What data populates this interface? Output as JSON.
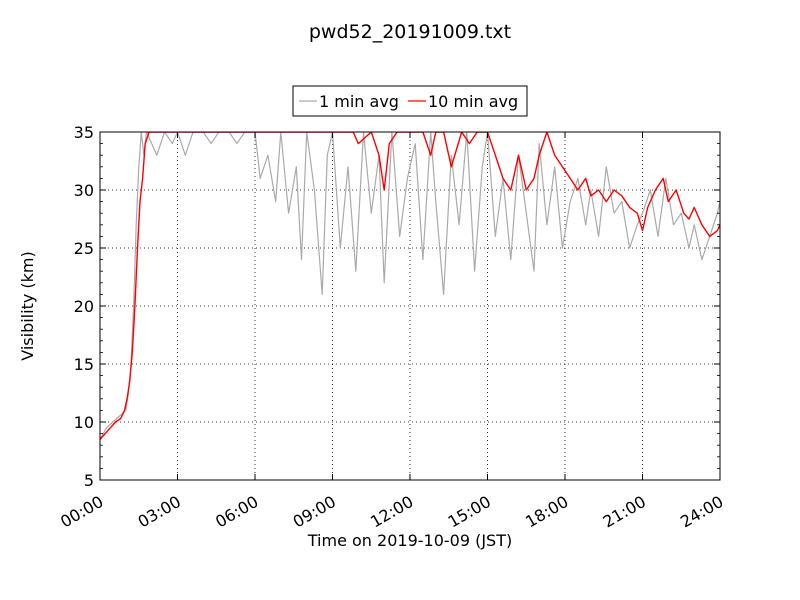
{
  "chart_data": {
    "type": "line",
    "title": "pwd52_20191009.txt",
    "xlabel": "Time on 2019-10-09 (JST)",
    "ylabel": "Visibility (km)",
    "xlim": [
      "00:00",
      "24:00"
    ],
    "ylim": [
      5,
      35
    ],
    "x_ticks": [
      "00:00",
      "03:00",
      "06:00",
      "09:00",
      "12:00",
      "15:00",
      "18:00",
      "21:00",
      "24:00"
    ],
    "y_ticks": [
      5,
      10,
      15,
      20,
      25,
      30,
      35
    ],
    "grid": true,
    "legend_position": "top-center",
    "series": [
      {
        "name": "1 min avg",
        "color": "#aaaaaa",
        "x_hours": [
          0.0,
          0.25,
          0.5,
          0.75,
          1.0,
          1.1,
          1.2,
          1.3,
          1.4,
          1.5,
          1.6,
          1.7,
          1.8,
          2.0,
          2.2,
          2.5,
          2.8,
          3.0,
          3.3,
          3.6,
          4.0,
          4.3,
          4.6,
          5.0,
          5.3,
          5.6,
          6.0,
          6.2,
          6.5,
          6.8,
          7.0,
          7.3,
          7.6,
          7.8,
          8.0,
          8.3,
          8.6,
          8.8,
          9.0,
          9.3,
          9.6,
          9.9,
          10.2,
          10.5,
          10.8,
          11.0,
          11.3,
          11.6,
          11.9,
          12.2,
          12.5,
          12.8,
          13.0,
          13.3,
          13.6,
          13.9,
          14.2,
          14.5,
          14.8,
          15.0,
          15.3,
          15.6,
          15.9,
          16.2,
          16.5,
          16.8,
          17.0,
          17.3,
          17.6,
          17.9,
          18.2,
          18.5,
          18.8,
          19.0,
          19.3,
          19.6,
          19.9,
          20.2,
          20.5,
          20.8,
          21.0,
          21.3,
          21.6,
          21.9,
          22.2,
          22.5,
          22.8,
          23.0,
          23.3,
          23.6,
          23.9,
          24.0
        ],
        "values": [
          8.5,
          9.5,
          10.0,
          10.5,
          11.0,
          12.5,
          15.0,
          20.0,
          27.0,
          32.0,
          35.0,
          33.0,
          35.0,
          34.0,
          33.0,
          35.0,
          34.0,
          35.0,
          33.0,
          35.0,
          35.0,
          34.0,
          35.0,
          35.0,
          34.0,
          35.0,
          35.0,
          31.0,
          33.0,
          29.0,
          35.0,
          28.0,
          32.0,
          24.0,
          35.0,
          30.0,
          21.0,
          33.0,
          35.0,
          25.0,
          32.0,
          23.0,
          35.0,
          28.0,
          33.0,
          22.0,
          35.0,
          26.0,
          31.0,
          34.0,
          24.0,
          35.0,
          29.0,
          21.0,
          33.0,
          27.0,
          35.0,
          23.0,
          32.0,
          35.0,
          26.0,
          31.0,
          24.0,
          33.0,
          28.0,
          23.0,
          34.0,
          27.0,
          32.0,
          25.0,
          29.0,
          31.0,
          27.0,
          30.0,
          26.0,
          32.0,
          28.0,
          29.0,
          25.0,
          27.0,
          28.0,
          30.0,
          26.0,
          31.0,
          27.0,
          28.0,
          25.0,
          27.0,
          24.0,
          26.0,
          28.0,
          29.0
        ]
      },
      {
        "name": "10 min avg",
        "color": "#ff0000",
        "x_hours": [
          0.0,
          0.2,
          0.4,
          0.6,
          0.8,
          0.95,
          1.05,
          1.15,
          1.25,
          1.35,
          1.45,
          1.55,
          1.65,
          1.75,
          1.9,
          2.2,
          2.6,
          3.0,
          3.5,
          4.0,
          5.0,
          6.0,
          7.0,
          8.0,
          8.5,
          8.8,
          9.0,
          9.5,
          9.8,
          10.0,
          10.5,
          10.8,
          11.0,
          11.2,
          11.5,
          12.0,
          12.5,
          12.8,
          13.0,
          13.3,
          13.6,
          14.0,
          14.3,
          14.6,
          15.0,
          15.3,
          15.6,
          15.9,
          16.2,
          16.5,
          16.8,
          17.0,
          17.3,
          17.6,
          17.9,
          18.2,
          18.5,
          18.8,
          19.0,
          19.3,
          19.6,
          19.9,
          20.2,
          20.5,
          20.8,
          21.0,
          21.2,
          21.5,
          21.8,
          22.0,
          22.3,
          22.6,
          22.8,
          23.0,
          23.3,
          23.6,
          23.9,
          24.0
        ],
        "values": [
          8.5,
          9.0,
          9.5,
          10.0,
          10.3,
          11.0,
          12.0,
          13.5,
          16.0,
          20.0,
          25.0,
          29.0,
          31.0,
          34.0,
          35.0,
          35.0,
          35.0,
          35.0,
          35.0,
          35.0,
          35.0,
          35.0,
          35.0,
          35.0,
          35.0,
          35.0,
          35.0,
          35.0,
          35.0,
          34.0,
          35.0,
          33.0,
          30.0,
          34.0,
          35.0,
          35.0,
          35.0,
          33.0,
          35.0,
          35.0,
          32.0,
          35.0,
          34.0,
          35.0,
          35.0,
          33.0,
          31.0,
          30.0,
          33.0,
          30.0,
          31.0,
          33.0,
          35.0,
          33.0,
          32.0,
          31.0,
          30.0,
          31.0,
          29.5,
          30.0,
          29.0,
          30.0,
          29.5,
          28.5,
          28.0,
          26.5,
          28.5,
          30.0,
          31.0,
          29.0,
          30.0,
          28.0,
          27.5,
          28.5,
          27.0,
          26.0,
          26.5,
          27.0
        ]
      }
    ]
  }
}
